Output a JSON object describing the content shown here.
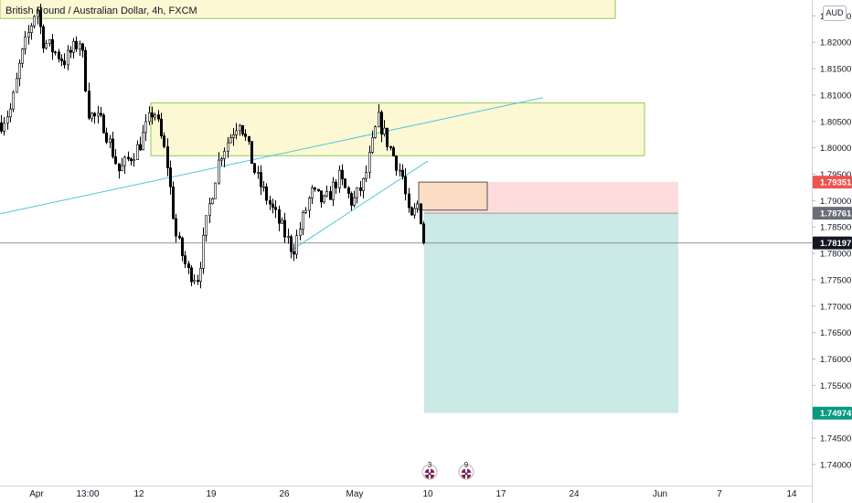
{
  "header": {
    "symbol_title": "British Pound / Australian Dollar, 4h, FXCM",
    "currency": "AUD"
  },
  "colors": {
    "up": "#ffffff",
    "down": "#000000",
    "wick": "#000000",
    "zone_fill": "#fcf8d3",
    "zone_stroke": "#8fcc5a",
    "trend": "#4fc6dc",
    "stop_fill": "#fcdcdc",
    "target_fill": "#cbe9e5",
    "entry_box_fill": "#fbdcc4",
    "price_line": "#878787",
    "label_dark": "#131722",
    "label_stop": "#ef5350",
    "label_entry": "#6a6d78",
    "label_target": "#089981"
  },
  "chart_data": {
    "type": "candlestick",
    "title": "British Pound / Australian Dollar, 4h, FXCM",
    "y_axis": {
      "range": [
        1.736,
        1.828
      ],
      "ticks": [
        "1.82500",
        "1.82000",
        "1.81500",
        "1.81000",
        "1.80500",
        "1.80000",
        "1.79500",
        "1.79000",
        "1.78500",
        "1.78000",
        "1.77500",
        "1.77000",
        "1.76500",
        "1.76000",
        "1.75500",
        "1.75000",
        "1.74500",
        "1.74000"
      ]
    },
    "x_axis": {
      "labels": [
        "Apr",
        "13:00",
        "12",
        "19",
        "26",
        "May",
        "10",
        "17",
        "24",
        "Jun",
        "7",
        "14"
      ]
    },
    "anchors": [
      [
        0,
        1.8045
      ],
      [
        12,
        1.8075
      ],
      [
        22,
        1.8165
      ],
      [
        40,
        1.827
      ],
      [
        46,
        1.8205
      ],
      [
        70,
        1.8165
      ],
      [
        88,
        1.8205
      ],
      [
        97,
        1.8065
      ],
      [
        113,
        1.8045
      ],
      [
        130,
        1.7955
      ],
      [
        152,
        1.8005
      ],
      [
        168,
        1.8075
      ],
      [
        182,
        1.7975
      ],
      [
        192,
        1.7835
      ],
      [
        205,
        1.7765
      ],
      [
        216,
        1.7755
      ],
      [
        228,
        1.7885
      ],
      [
        240,
        1.7985
      ],
      [
        262,
        1.8055
      ],
      [
        280,
        1.7945
      ],
      [
        300,
        1.7875
      ],
      [
        320,
        1.7805
      ],
      [
        340,
        1.7915
      ],
      [
        355,
        1.7895
      ],
      [
        370,
        1.7945
      ],
      [
        385,
        1.7895
      ],
      [
        398,
        1.7935
      ],
      [
        413,
        1.8055
      ],
      [
        425,
        1.8005
      ],
      [
        440,
        1.7945
      ],
      [
        448,
        1.7855
      ],
      [
        457,
        1.7895
      ],
      [
        465,
        1.7815
      ]
    ],
    "current_price": 1.78197,
    "zones": [
      {
        "name": "upper-supply-zone",
        "x_start": 0,
        "x_end": 673,
        "y_top": 1.8285,
        "y_bottom": 1.8245
      },
      {
        "name": "resistance-zone",
        "x_start": 165,
        "x_end": 705,
        "y_top": 1.8085,
        "y_bottom": 1.7985
      }
    ],
    "trendlines": [
      {
        "name": "upper-trendline",
        "x1": 0,
        "y1": 1.7875,
        "x2": 594,
        "y2": 1.8095
      },
      {
        "name": "lower-trendline",
        "x1": 318,
        "y1": 1.7805,
        "x2": 468,
        "y2": 1.7975
      }
    ],
    "position": {
      "x_start": 464,
      "x_end": 742,
      "stop": 1.79351,
      "entry": 1.78761,
      "target": 1.74974,
      "entry_box": {
        "x_start": 458,
        "x_end": 533,
        "y_top": 1.7935,
        "y_bottom": 1.7882
      }
    },
    "price_labels": [
      {
        "name": "stop-price-label",
        "value": "1.79351",
        "price": 1.79351,
        "kind": "stop"
      },
      {
        "name": "entry-price-label",
        "value": "1.78761",
        "price": 1.78761,
        "kind": "entry"
      },
      {
        "name": "last-price-label",
        "value": "1.78197",
        "price": 1.78197,
        "kind": "dark"
      },
      {
        "name": "target-price-label",
        "value": "1.74974",
        "price": 1.74974,
        "kind": "target"
      }
    ],
    "events": [
      {
        "name": "gbp-event-flag-1",
        "count": "3",
        "x": 470
      },
      {
        "name": "gbp-event-flag-2",
        "count": "9",
        "x": 510
      }
    ]
  }
}
